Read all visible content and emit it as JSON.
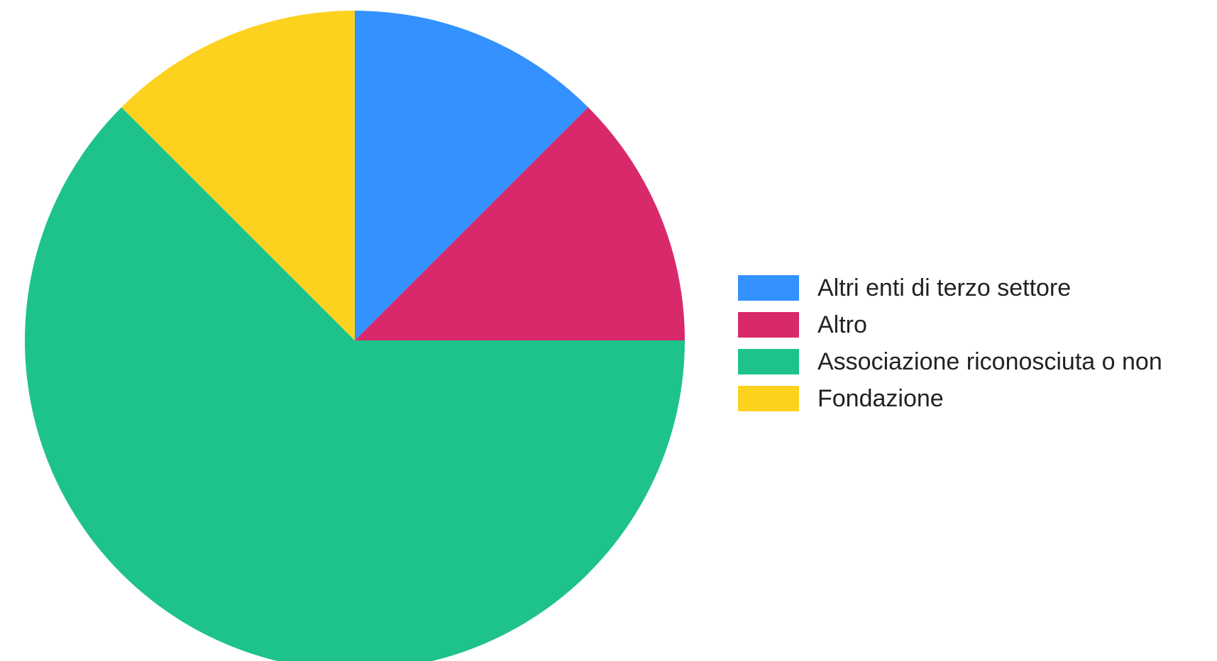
{
  "chart_data": {
    "type": "pie",
    "title": "",
    "categories": [
      "Altri enti di terzo settore",
      "Altro",
      "Associazione riconosciuta o non",
      "Fondazione"
    ],
    "values": [
      12.5,
      12.5,
      62.5,
      12.5
    ],
    "colors": [
      "#3392FF",
      "#D8296B",
      "#1DC38A",
      "#FDD21F"
    ],
    "start_angle_deg": 0,
    "direction": "clockwise",
    "legend": "right"
  }
}
